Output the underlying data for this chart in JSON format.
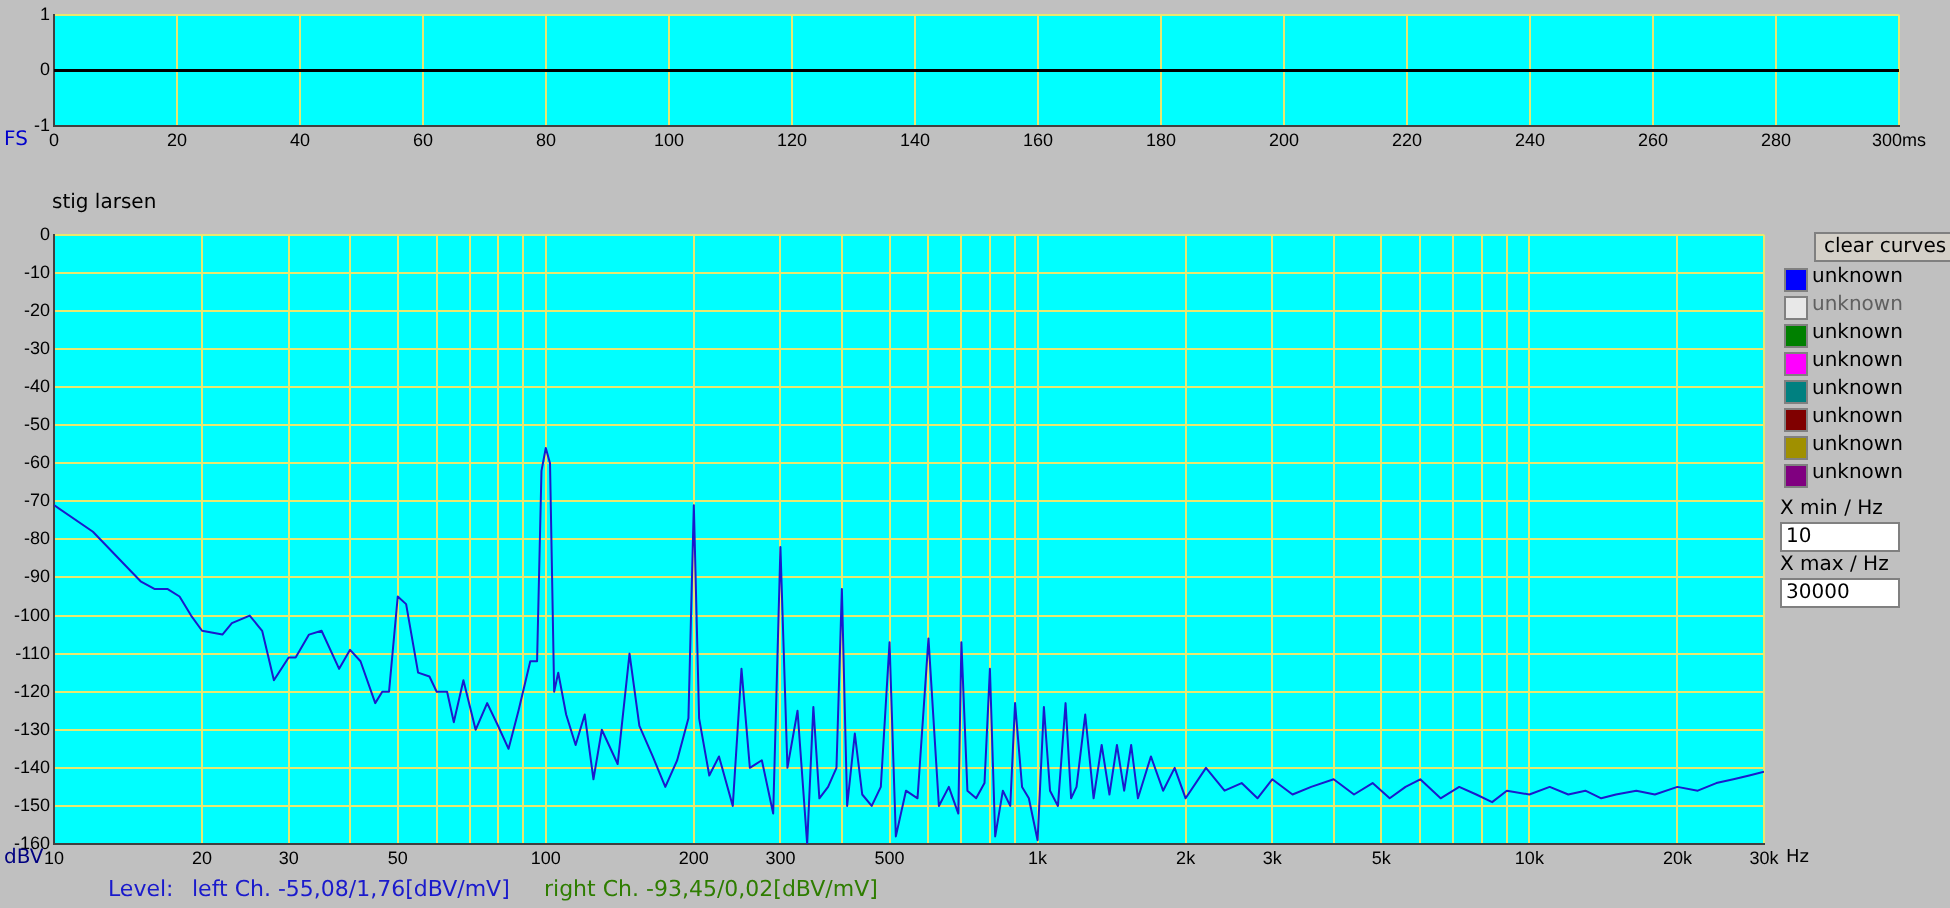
{
  "chart_data": [
    {
      "type": "line",
      "ylabel": "FS",
      "x": [
        0,
        20,
        40,
        60,
        80,
        100,
        120,
        140,
        160,
        180,
        200,
        220,
        240,
        260,
        280,
        300
      ],
      "series": [
        {
          "color": "#000000",
          "values": [
            0,
            0,
            0,
            0,
            0,
            0,
            0,
            0,
            0,
            0,
            0,
            0,
            0,
            0,
            0,
            0
          ]
        }
      ],
      "xlim": [
        0,
        300
      ],
      "xticks": [
        0,
        20,
        40,
        60,
        80,
        100,
        120,
        140,
        160,
        180,
        200,
        220,
        240,
        260,
        280,
        {
          "value": 300,
          "label": "300ms"
        }
      ],
      "ylim": [
        -1,
        1
      ],
      "yticks": [
        -1,
        0,
        1
      ],
      "grid": true,
      "legend": false,
      "marker": "none",
      "line_style": "solid"
    },
    {
      "type": "line",
      "ylabel": "dBV",
      "log": "x",
      "x": [
        10,
        12,
        14,
        15,
        16,
        17,
        18,
        19,
        20,
        22,
        23,
        25,
        26.5,
        28,
        30,
        31,
        33,
        35,
        38,
        40,
        42,
        45,
        46.5,
        48,
        50,
        52,
        55,
        58,
        60,
        63,
        65,
        68,
        72,
        76,
        80,
        84,
        88,
        93,
        96,
        98,
        100,
        102,
        104,
        106,
        110,
        115,
        120,
        125,
        130,
        140,
        148,
        155,
        165,
        175,
        185,
        195,
        200,
        205,
        215,
        225,
        240,
        250,
        260,
        275,
        290,
        300,
        310,
        325,
        340,
        350,
        360,
        375,
        390,
        400,
        410,
        425,
        440,
        460,
        480,
        500,
        515,
        540,
        570,
        600,
        630,
        660,
        690,
        700,
        720,
        750,
        780,
        800,
        820,
        850,
        880,
        900,
        930,
        960,
        1000,
        1030,
        1060,
        1100,
        1140,
        1170,
        1200,
        1250,
        1300,
        1350,
        1400,
        1450,
        1500,
        1550,
        1600,
        1700,
        1800,
        1900,
        2000,
        2200,
        2400,
        2600,
        2800,
        3000,
        3300,
        3600,
        4000,
        4400,
        4800,
        5200,
        5600,
        6000,
        6600,
        7200,
        7800,
        8400,
        9000,
        10000,
        11000,
        12000,
        13000,
        14000,
        15000,
        16500,
        18000,
        20000,
        22000,
        24000,
        26000,
        28000,
        30000
      ],
      "series": [
        {
          "color": "#1a1acc",
          "values": [
            -71,
            -78,
            -87,
            -91,
            -93,
            -93,
            -95,
            -100,
            -104,
            -105,
            -102,
            -100,
            -104,
            -117,
            -111,
            -111,
            -105,
            -104,
            -114,
            -109,
            -112,
            -123,
            -120,
            -120,
            -95,
            -97,
            -115,
            -116,
            -120,
            -120,
            -128,
            -117,
            -130,
            -123,
            -129,
            -135,
            -125,
            -112,
            -112,
            -62,
            -56,
            -60,
            -120,
            -115,
            -126,
            -134,
            -126,
            -143,
            -130,
            -139,
            -110,
            -129,
            -137,
            -145,
            -138,
            -127,
            -71,
            -127,
            -142,
            -137,
            -150,
            -114,
            -140,
            -138,
            -152,
            -82,
            -140,
            -125,
            -160,
            -124,
            -148,
            -145,
            -140,
            -93,
            -150,
            -131,
            -147,
            -150,
            -145,
            -107,
            -158,
            -146,
            -148,
            -106,
            -150,
            -145,
            -152,
            -107,
            -146,
            -148,
            -144,
            -114,
            -158,
            -146,
            -150,
            -123,
            -145,
            -148,
            -159,
            -124,
            -146,
            -150,
            -123,
            -148,
            -145,
            -126,
            -148,
            -134,
            -147,
            -134,
            -146,
            -134,
            -148,
            -137,
            -146,
            -140,
            -148,
            -140,
            -146,
            -144,
            -148,
            -143,
            -147,
            -145,
            -143,
            -147,
            -144,
            -148,
            -145,
            -143,
            -148,
            -145,
            -147,
            -149,
            -146,
            -147,
            -145,
            -147,
            -146,
            -148,
            -147,
            -146,
            -147,
            -145,
            -146,
            -144,
            -143,
            -142,
            -141
          ]
        }
      ],
      "xlim": [
        10,
        30000
      ],
      "xticks": [
        10,
        20,
        {
          "value": 30,
          "label": "30"
        },
        {
          "value": 40,
          "label": null
        },
        50,
        {
          "value": 60,
          "label": null
        },
        {
          "value": 70,
          "label": null
        },
        {
          "value": 80,
          "label": null
        },
        {
          "value": 90,
          "label": null
        },
        100,
        200,
        300,
        {
          "value": 400,
          "label": null
        },
        500,
        {
          "value": 600,
          "label": null
        },
        {
          "value": 700,
          "label": null
        },
        {
          "value": 800,
          "label": null
        },
        {
          "value": 900,
          "label": null
        },
        {
          "value": 1000,
          "label": "1k"
        },
        {
          "value": 2000,
          "label": "2k"
        },
        {
          "value": 3000,
          "label": "3k"
        },
        {
          "value": 4000,
          "label": null
        },
        {
          "value": 5000,
          "label": "5k"
        },
        {
          "value": 6000,
          "label": null
        },
        {
          "value": 7000,
          "label": null
        },
        {
          "value": 8000,
          "label": null
        },
        {
          "value": 9000,
          "label": null
        },
        {
          "value": 10000,
          "label": "10k"
        },
        {
          "value": 20000,
          "label": "20k"
        },
        {
          "value": 30000,
          "label": "30k"
        }
      ],
      "xlabel": "Hz",
      "ylim": [
        -160,
        0
      ],
      "yticks": [
        -160,
        -150,
        -140,
        -130,
        -120,
        -110,
        -100,
        -90,
        -80,
        -70,
        -60,
        -50,
        -40,
        -30,
        -20,
        -10,
        0
      ],
      "grid": true,
      "legend": false,
      "marker": "none",
      "line_style": "solid",
      "annotations": [
        "stig larsen",
        "clear curves",
        "unknown",
        "unknown",
        "unknown",
        "unknown",
        "unknown",
        "unknown",
        "unknown",
        "unknown",
        "X min / Hz",
        "10",
        "X max / Hz",
        "30000",
        "Level:",
        "left Ch. -55,08/1,76[dBV/mV]",
        "right Ch. -93,45/0,02[dBV/mV]"
      ]
    }
  ]
}
